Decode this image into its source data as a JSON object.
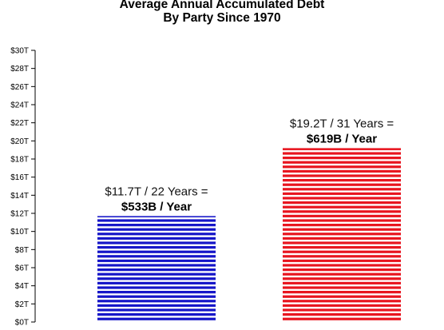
{
  "chart_data": {
    "type": "bar",
    "title": [
      "Average Annual Accumulated Debt",
      "By Party Since 1970"
    ],
    "xlabel": "",
    "ylabel": "",
    "ylim": [
      0,
      30
    ],
    "yticks": [
      {
        "value": 0,
        "label": "$0T"
      },
      {
        "value": 2,
        "label": "$2T"
      },
      {
        "value": 4,
        "label": "$4T"
      },
      {
        "value": 6,
        "label": "$6T"
      },
      {
        "value": 8,
        "label": "$8T"
      },
      {
        "value": 10,
        "label": "$10T"
      },
      {
        "value": 12,
        "label": "$12T"
      },
      {
        "value": 14,
        "label": "$14T"
      },
      {
        "value": 16,
        "label": "$16T"
      },
      {
        "value": 18,
        "label": "$18T"
      },
      {
        "value": 20,
        "label": "$20T"
      },
      {
        "value": 22,
        "label": "$22T"
      },
      {
        "value": 24,
        "label": "$24T"
      },
      {
        "value": 26,
        "label": "$26T"
      },
      {
        "value": 28,
        "label": "$28T"
      },
      {
        "value": 30,
        "label": "$30T"
      }
    ],
    "grid": false,
    "legend": "none",
    "bars": [
      {
        "value": 11.7,
        "color": "#1414c8",
        "annotation": [
          "$11.7T / 22 Years =",
          "$533B / Year"
        ]
      },
      {
        "value": 19.2,
        "color": "#e8141e",
        "annotation": [
          "$19.2T / 31 Years =",
          "$619B / Year"
        ]
      }
    ]
  }
}
